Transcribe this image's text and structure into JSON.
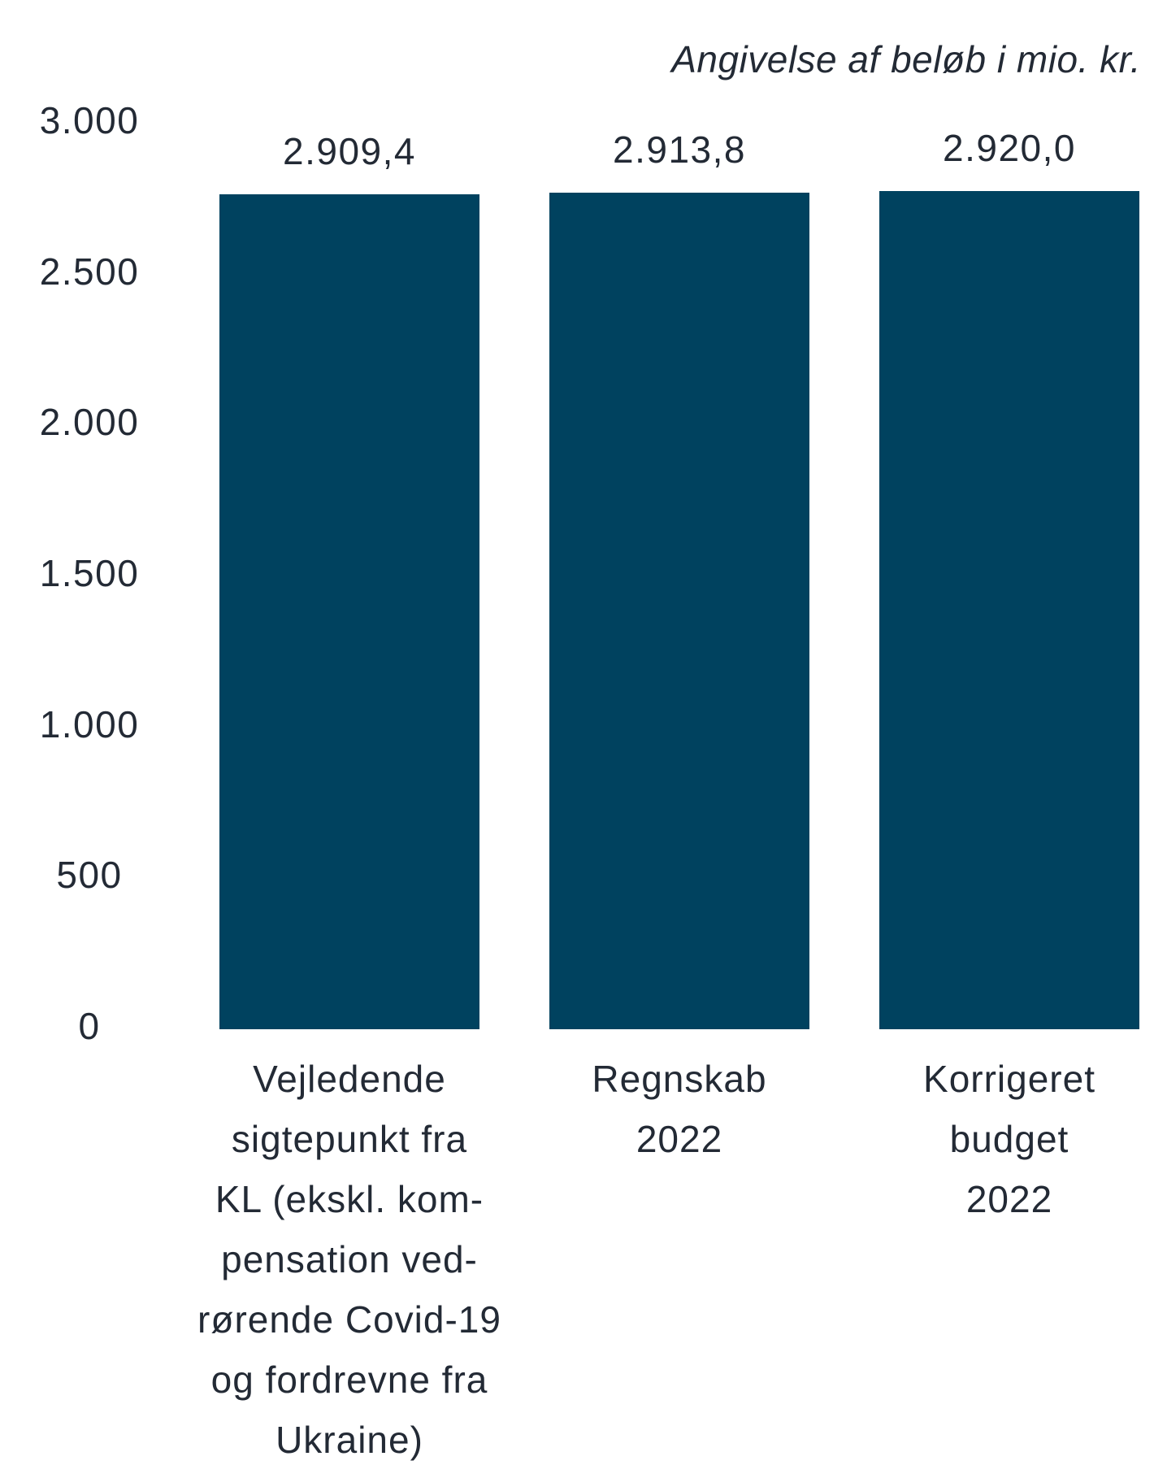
{
  "chart_data": {
    "type": "bar",
    "unit_annotation": "Angivelse af beløb i mio. kr.",
    "categories": [
      [
        "Vejledende",
        "sigtepunkt fra",
        "KL (ekskl. kom-",
        "pensation ved-",
        "rørende Covid-19",
        "og fordrevne fra",
        "Ukraine)"
      ],
      [
        "Regnskab",
        "2022"
      ],
      [
        "Korrigeret",
        "budget",
        "2022"
      ]
    ],
    "values": [
      2909.4,
      2913.8,
      2920.0
    ],
    "value_labels": [
      "2.909,4",
      "2.913,8",
      "2.920,0"
    ],
    "y_ticks": [
      "3.000",
      "2.500",
      "2.000",
      "1.500",
      "1.000",
      "500",
      "0"
    ],
    "y_tick_values": [
      3000,
      2500,
      2000,
      1500,
      1000,
      500,
      0
    ],
    "ylim": [
      0,
      3000
    ],
    "xlabel": "",
    "ylabel": "",
    "grid": false,
    "legend": false,
    "bar_color": "#00425f",
    "text_color": "#232a35",
    "background_color": "#ffffff"
  }
}
